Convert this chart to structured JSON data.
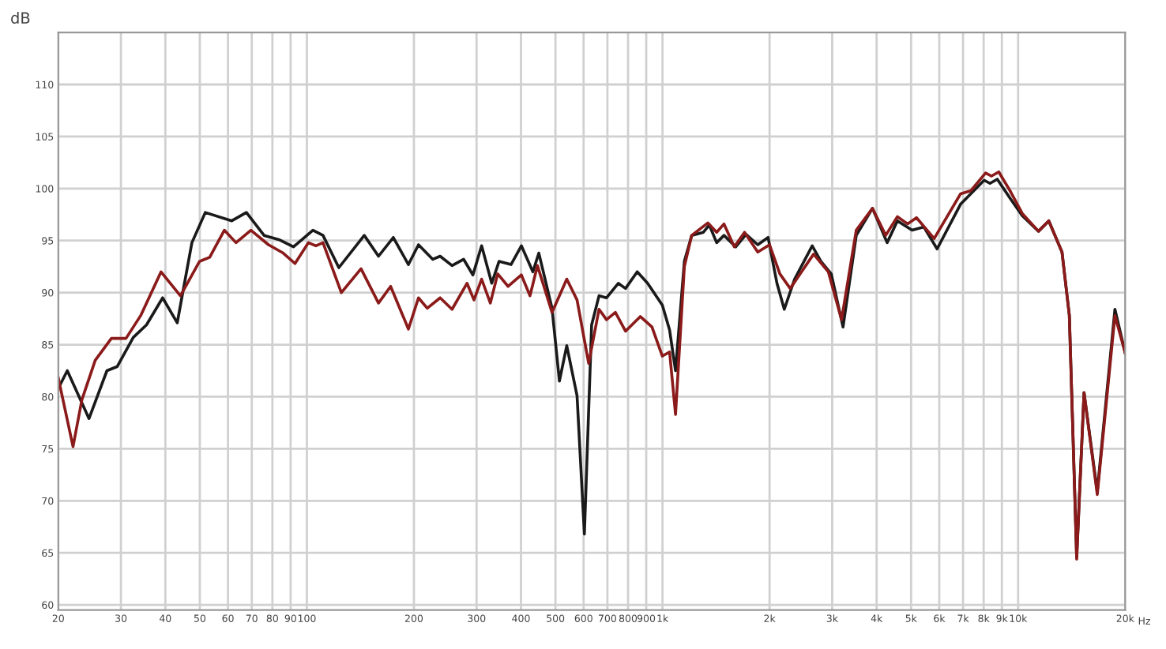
{
  "chart_data": {
    "type": "line",
    "ylabel": "dB",
    "xlabel": "Hz",
    "log": "x",
    "grid": true,
    "marker": "none",
    "line_style": "solid",
    "xlim": [
      20,
      20000
    ],
    "ylim": [
      59.5,
      115
    ],
    "xticks": [
      20,
      30,
      40,
      50,
      60,
      70,
      80,
      90,
      100,
      200,
      300,
      400,
      500,
      600,
      700,
      800,
      900,
      {
        "value": 1000,
        "label": "1k"
      },
      {
        "value": 2000,
        "label": "2k"
      },
      {
        "value": 3000,
        "label": "3k"
      },
      {
        "value": 4000,
        "label": "4k"
      },
      {
        "value": 5000,
        "label": "5k"
      },
      {
        "value": 6000,
        "label": "6k"
      },
      {
        "value": 7000,
        "label": "7k"
      },
      {
        "value": 8000,
        "label": "8k"
      },
      {
        "value": 9000,
        "label": "9k"
      },
      {
        "value": 10000,
        "label": "10k"
      },
      {
        "value": 20000,
        "label": "20k"
      }
    ],
    "yticks": [
      60,
      65,
      70,
      75,
      80,
      85,
      90,
      95,
      100,
      105,
      110
    ],
    "series": [
      {
        "color": "#1a1a1a",
        "x": [
          20,
          21.2,
          24.4,
          27.4,
          29.3,
          32.5,
          35.4,
          39.3,
          43.2,
          47.5,
          51.8,
          61.5,
          67.6,
          75.8,
          83.4,
          91.7,
          104,
          111,
          123,
          145,
          159,
          175,
          193,
          206,
          226,
          237,
          256,
          276,
          293,
          310,
          331,
          347,
          375,
          401,
          432,
          449,
          489,
          513,
          538,
          575,
          603,
          632,
          663,
          696,
          751,
          787,
          849,
          908,
          999,
          1047,
          1088,
          1152,
          1208,
          1303,
          1354,
          1420,
          1489,
          1607,
          1718,
          1853,
          1981,
          2098,
          2200,
          2352,
          2636,
          2790,
          2982,
          3218,
          3506,
          3894,
          4282,
          4576,
          5032,
          5432,
          5918,
          6890,
          8024,
          8334,
          8738,
          9522,
          10272,
          11410,
          12196,
          13284,
          13932,
          14610,
          15322,
          16692,
          18714,
          20000
        ],
        "values": [
          80.8,
          82.5,
          77.9,
          82.5,
          82.9,
          85.7,
          86.9,
          89.5,
          87.1,
          94.8,
          97.7,
          96.9,
          97.7,
          95.5,
          95.1,
          94.4,
          96.0,
          95.5,
          92.4,
          95.5,
          93.5,
          95.3,
          92.7,
          94.6,
          93.2,
          93.5,
          92.6,
          93.2,
          91.7,
          94.5,
          90.9,
          93.0,
          92.7,
          94.5,
          92.0,
          93.8,
          88.5,
          81.5,
          84.9,
          80.1,
          66.8,
          86.9,
          89.7,
          89.5,
          90.9,
          90.4,
          92.0,
          90.9,
          88.8,
          86.4,
          82.5,
          93.0,
          95.5,
          95.8,
          96.5,
          94.8,
          95.5,
          94.4,
          95.6,
          94.6,
          95.3,
          90.9,
          88.4,
          91.3,
          94.5,
          93.0,
          91.8,
          86.7,
          95.5,
          98.1,
          94.8,
          96.9,
          96.0,
          96.3,
          94.2,
          98.5,
          100.8,
          100.5,
          100.9,
          99.0,
          97.4,
          95.9,
          96.9,
          93.9,
          87.8,
          64.6,
          80.4,
          70.9,
          88.4,
          84.2
        ]
      },
      {
        "color": "#8b1a1a",
        "x": [
          20,
          22.0,
          23.3,
          25.4,
          28.2,
          31.0,
          34.1,
          38.9,
          44.1,
          49.9,
          53.3,
          58.6,
          63.2,
          69.6,
          78.0,
          85.8,
          92.6,
          101,
          106,
          111,
          125,
          142,
          159,
          172,
          193,
          206,
          218,
          237,
          256,
          282,
          295,
          310,
          328,
          344,
          368,
          401,
          424,
          445,
          489,
          538,
          575,
          620,
          663,
          696,
          737,
          787,
          866,
          934,
          999,
          1047,
          1088,
          1152,
          1208,
          1341,
          1420,
          1489,
          1592,
          1701,
          1853,
          2000,
          2138,
          2286,
          2660,
          2926,
          3188,
          3506,
          3894,
          4242,
          4576,
          4890,
          5178,
          5806,
          6890,
          7366,
          8100,
          8414,
          8822,
          9522,
          10272,
          11410,
          12196,
          13284,
          13932,
          14610,
          15322,
          16692,
          18714,
          20000
        ],
        "values": [
          81.8,
          75.2,
          79.7,
          83.5,
          85.6,
          85.6,
          87.8,
          92.0,
          89.7,
          93.0,
          93.4,
          96.0,
          94.8,
          96.0,
          94.6,
          93.8,
          92.8,
          94.8,
          94.5,
          94.8,
          90.0,
          92.3,
          89.0,
          90.6,
          86.5,
          89.5,
          88.5,
          89.5,
          88.4,
          90.9,
          89.3,
          91.3,
          89.0,
          91.8,
          90.6,
          91.7,
          89.7,
          92.6,
          88.1,
          91.3,
          89.3,
          83.2,
          88.4,
          87.4,
          88.1,
          86.3,
          87.7,
          86.7,
          83.9,
          84.3,
          78.3,
          92.5,
          95.5,
          96.7,
          95.8,
          96.6,
          94.4,
          95.8,
          93.9,
          94.6,
          91.8,
          90.4,
          93.7,
          92.0,
          87.4,
          96.0,
          98.1,
          95.5,
          97.3,
          96.6,
          97.2,
          95.2,
          99.5,
          99.8,
          101.5,
          101.2,
          101.6,
          99.7,
          97.6,
          95.9,
          96.9,
          93.9,
          87.8,
          64.4,
          80.4,
          70.6,
          87.8,
          84.2
        ]
      }
    ]
  }
}
